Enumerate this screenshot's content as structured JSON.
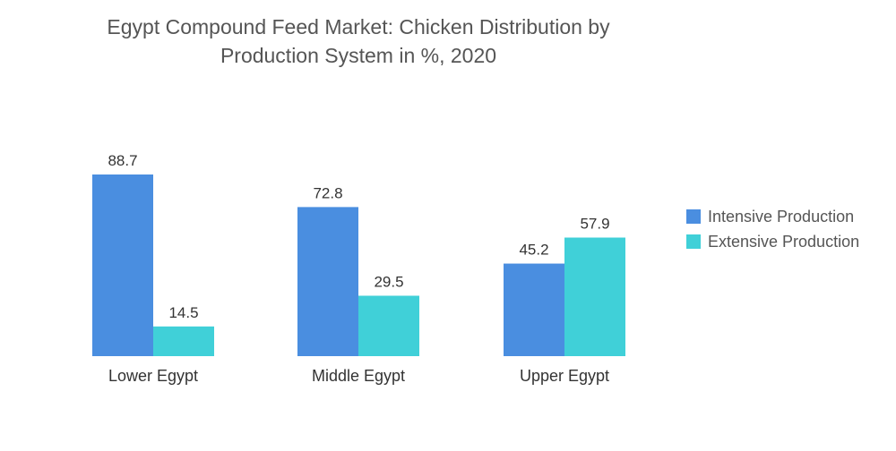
{
  "chart_data": {
    "type": "bar",
    "title_line1": "Egypt Compound Feed Market: Chicken Distribution by",
    "title_line2": "Production System in %, 2020",
    "categories": [
      "Lower Egypt",
      "Middle Egypt",
      "Upper Egypt"
    ],
    "series": [
      {
        "name": "Intensive Production",
        "values": [
          88.7,
          72.8,
          45.2
        ],
        "color": "#4a8ee0"
      },
      {
        "name": "Extensive Production",
        "values": [
          14.5,
          29.5,
          57.9
        ],
        "color": "#40d0d8"
      }
    ],
    "ylim": [
      0,
      100
    ],
    "grid": false,
    "legend_position": "right"
  }
}
